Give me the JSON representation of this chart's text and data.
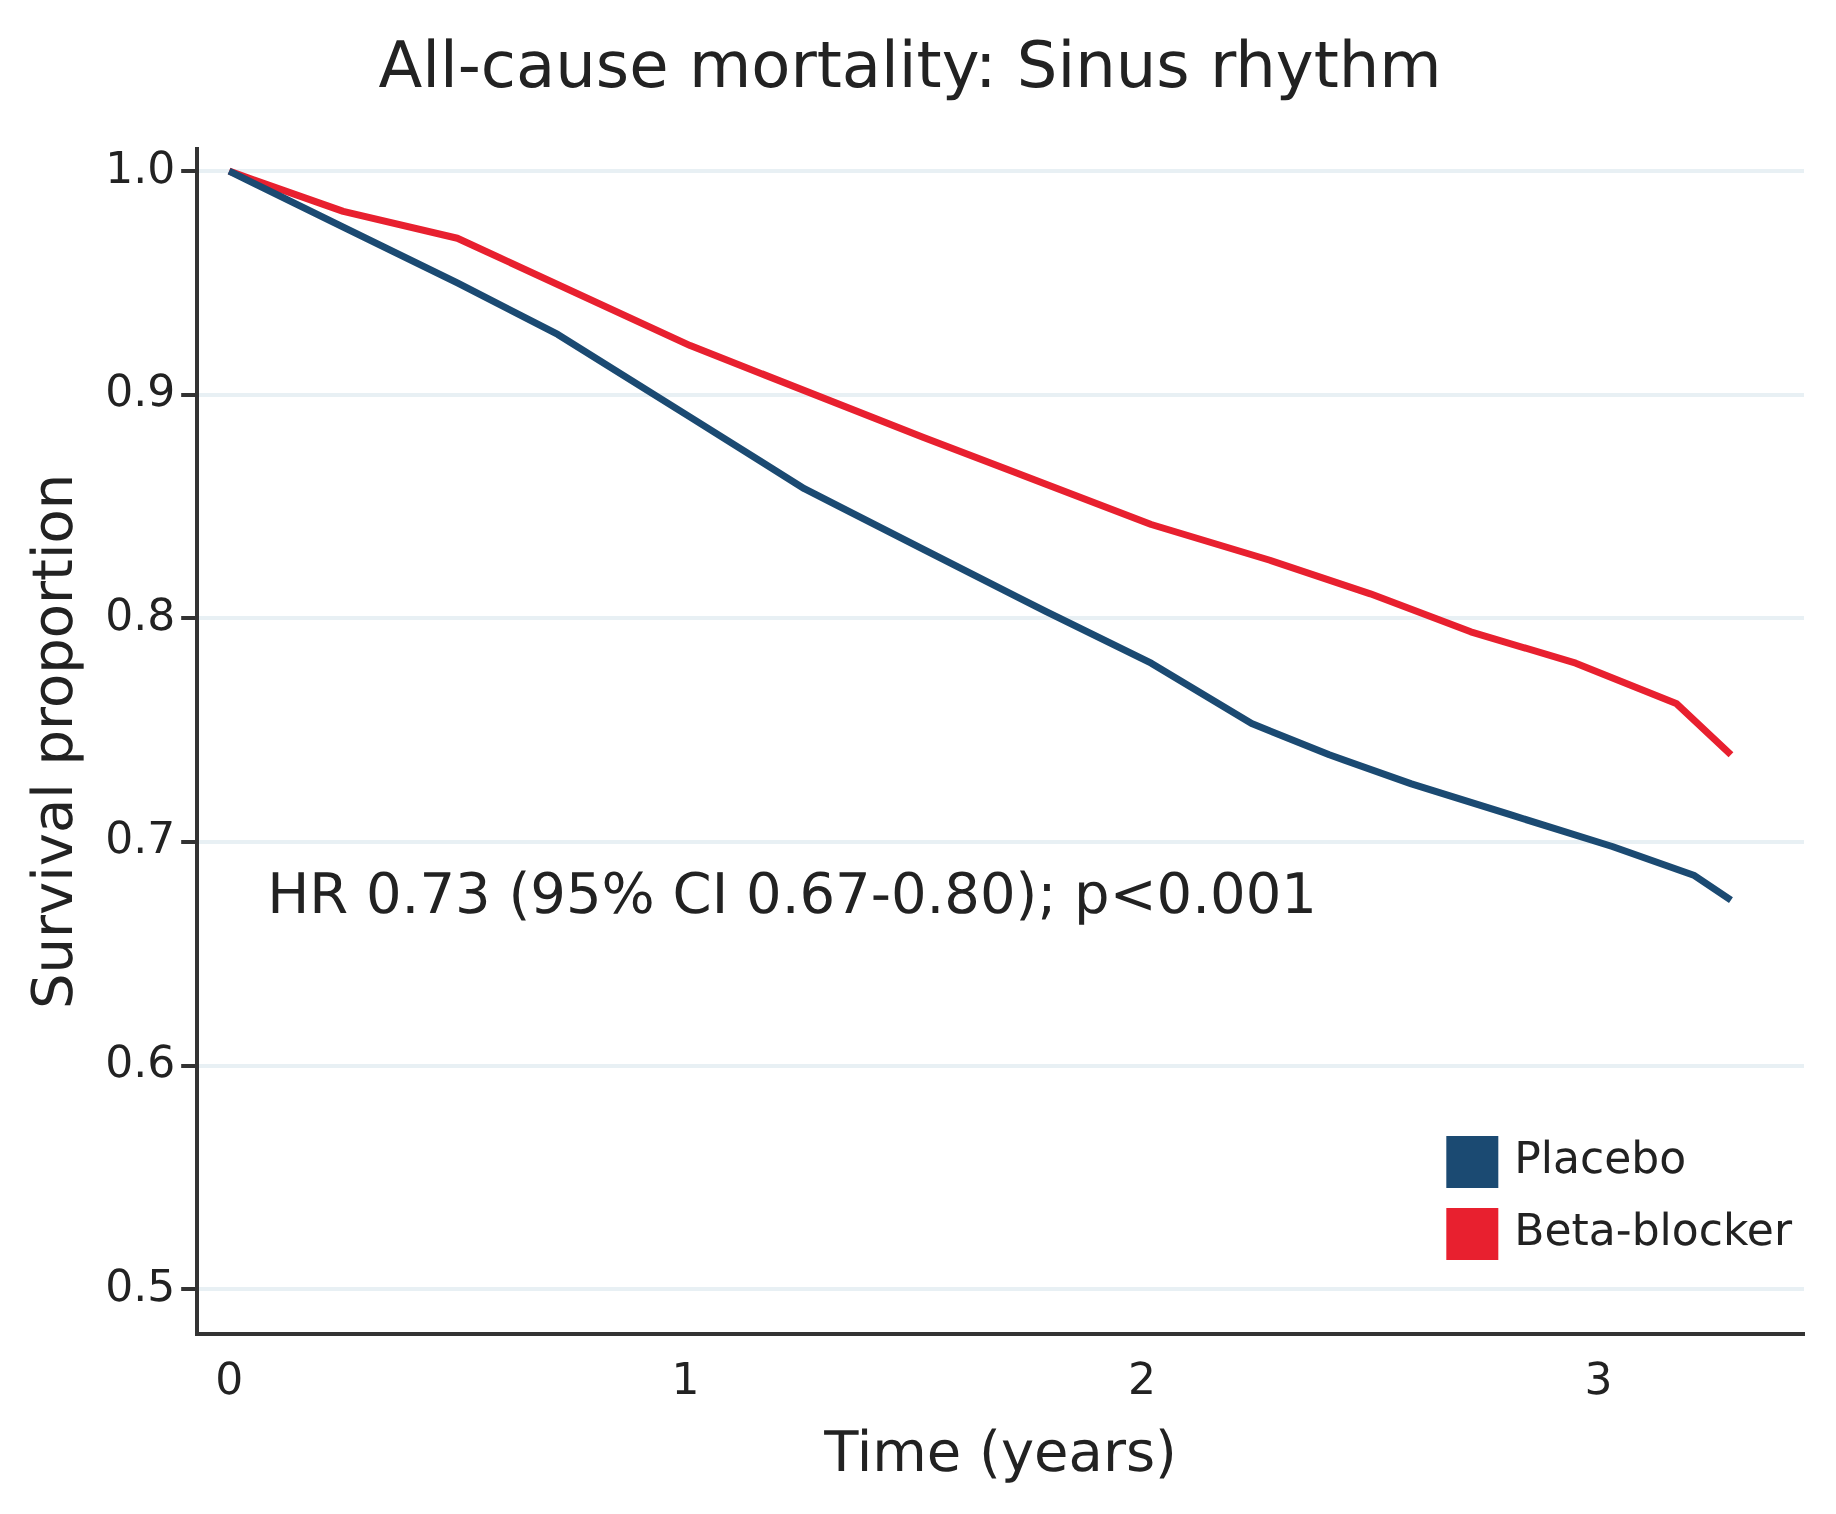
{
  "chart_data": {
    "type": "line",
    "title": "All-cause mortality: Sinus rhythm",
    "xlabel": "Time (years)",
    "ylabel": "Survival proportion",
    "annotations": [
      "HR 0.73 (95% CI 0.67-0.80); p<0.001"
    ],
    "series": [
      {
        "name": "Placebo",
        "color": "#1b4a72",
        "x": [
          0,
          0.25,
          0.5,
          0.72,
          1.01,
          1.26,
          1.52,
          1.79,
          2.02,
          2.24,
          2.41,
          2.59,
          2.81,
          3.03,
          3.21,
          3.29
        ],
        "values": [
          1.0,
          0.975,
          0.95,
          0.927,
          0.89,
          0.858,
          0.831,
          0.803,
          0.78,
          0.753,
          0.739,
          0.726,
          0.712,
          0.698,
          0.685,
          0.674
        ]
      },
      {
        "name": "Beta-blocker",
        "color": "#e8202f",
        "x": [
          0,
          0.25,
          0.5,
          1.01,
          1.52,
          2.02,
          2.28,
          2.5,
          2.72,
          2.95,
          3.17,
          3.29
        ],
        "values": [
          1.0,
          0.982,
          0.97,
          0.922,
          0.881,
          0.842,
          0.826,
          0.811,
          0.794,
          0.78,
          0.762,
          0.739
        ]
      }
    ],
    "xlim": [
      -0.07,
      3.45
    ],
    "xticks": [
      0,
      1,
      2,
      3
    ],
    "ylim": [
      0.48,
      1.01
    ],
    "yticks": [
      0.5,
      0.6,
      0.7,
      0.8,
      0.9,
      {
        "value": 1,
        "label": "1.0"
      }
    ],
    "grid": "y",
    "legend": "bottom right",
    "marker": "none",
    "line_style": "solid"
  }
}
